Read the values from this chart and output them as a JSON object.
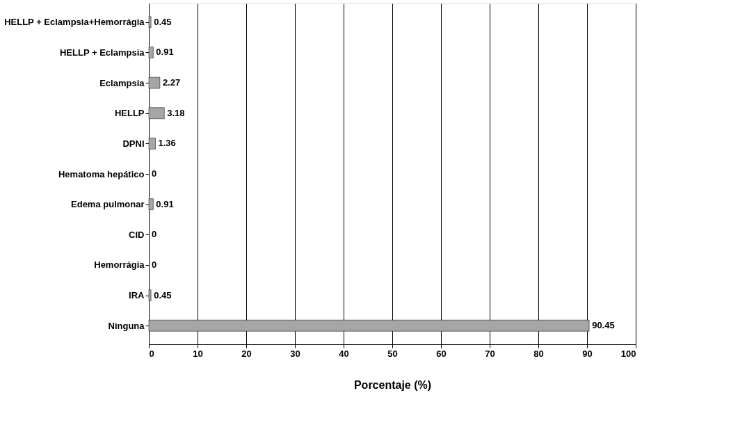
{
  "chart_data": {
    "type": "bar",
    "orientation": "horizontal",
    "xlabel": "Porcentaje (%)",
    "categories": [
      "HELLP + Eclampsia+Hemorrágia",
      "HELLP + Eclampsia",
      "Eclampsia",
      "HELLP",
      "DPNI",
      "Hematoma hepático",
      "Edema pulmonar",
      "CID",
      "Hemorrágia",
      "IRA",
      "Ninguna"
    ],
    "values": [
      0.45,
      0.91,
      2.27,
      3.18,
      1.36,
      0,
      0.91,
      0,
      0,
      0.45,
      90.45
    ],
    "color": "#a6a6a6",
    "xlim": [
      0,
      100
    ],
    "xticks": [
      0,
      10,
      20,
      30,
      40,
      50,
      60,
      70,
      80,
      90,
      100
    ],
    "grid": "x",
    "data_labels": true
  }
}
